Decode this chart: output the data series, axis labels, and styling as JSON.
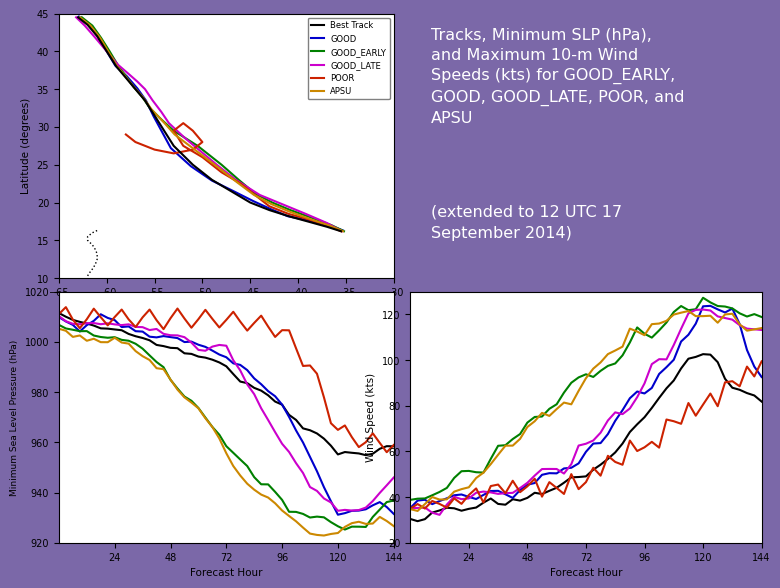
{
  "background_color": "#7B68A8",
  "text_color": "#FFFFFF",
  "colors": {
    "best_track": "#000000",
    "good": "#0000CC",
    "good_early": "#008000",
    "good_late": "#CC00CC",
    "poor": "#CC2200",
    "apsu": "#CC8800"
  },
  "track_xlim": [
    -65,
    -30
  ],
  "track_ylim": [
    10,
    45
  ],
  "track_xticks": [
    -65,
    -60,
    -55,
    -50,
    -45,
    -40,
    -35,
    -30
  ],
  "track_yticks": [
    10,
    15,
    20,
    25,
    30,
    35,
    40,
    45
  ],
  "slp_xlim": [
    0,
    144
  ],
  "slp_ylim": [
    920,
    1020
  ],
  "slp_yticks": [
    920,
    940,
    960,
    980,
    1000,
    1020
  ],
  "wind_xlim": [
    0,
    144
  ],
  "wind_ylim": [
    20,
    130
  ],
  "wind_yticks": [
    20,
    40,
    60,
    80,
    100,
    120
  ],
  "forecast_ticks": [
    24,
    48,
    72,
    96,
    120,
    144
  ]
}
